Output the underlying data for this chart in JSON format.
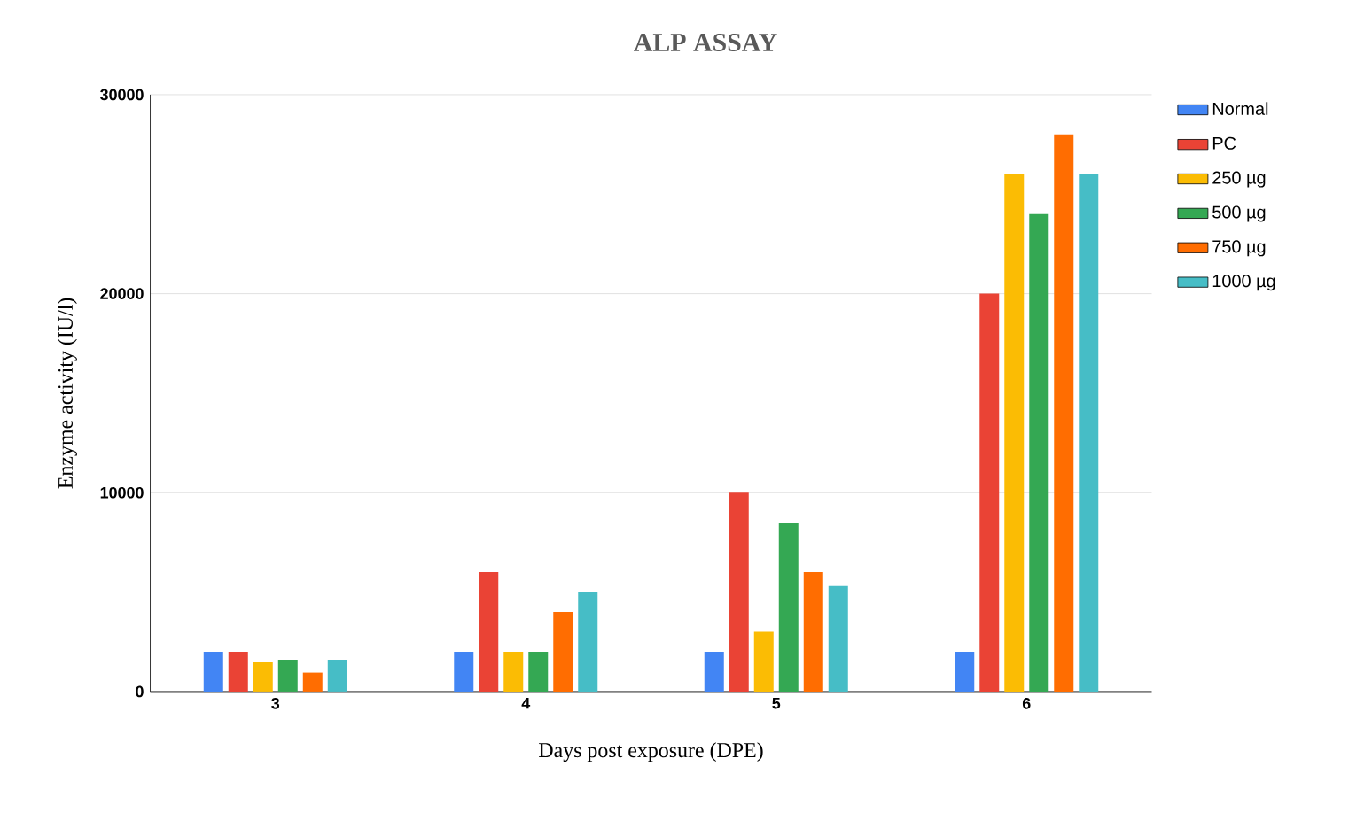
{
  "chart_data": {
    "type": "bar",
    "title": "ALP ASSAY",
    "xlabel": "Days post exposure (DPE)",
    "ylabel": "Enzyme activity (IU/l)",
    "categories": [
      "3",
      "4",
      "5",
      "6"
    ],
    "series": [
      {
        "name": "Normal",
        "color": "#4285f4",
        "values": [
          2000,
          2000,
          2000,
          2000
        ]
      },
      {
        "name": "PC",
        "color": "#ea4335",
        "values": [
          2000,
          6000,
          10000,
          20000
        ]
      },
      {
        "name": "250 µg",
        "color": "#fbbc04",
        "values": [
          1500,
          2000,
          3000,
          26000
        ]
      },
      {
        "name": "500 µg",
        "color": "#34a853",
        "values": [
          1600,
          2000,
          8500,
          24000
        ]
      },
      {
        "name": "750 µg",
        "color": "#ff6d01",
        "values": [
          950,
          4000,
          6000,
          28000
        ]
      },
      {
        "name": "1000 µg",
        "color": "#46bdc6",
        "values": [
          1600,
          5000,
          5300,
          26000
        ]
      }
    ],
    "ylim": [
      0,
      30000
    ],
    "yticks": [
      0,
      10000,
      20000,
      30000
    ],
    "grid": "y",
    "legend": "top right"
  }
}
